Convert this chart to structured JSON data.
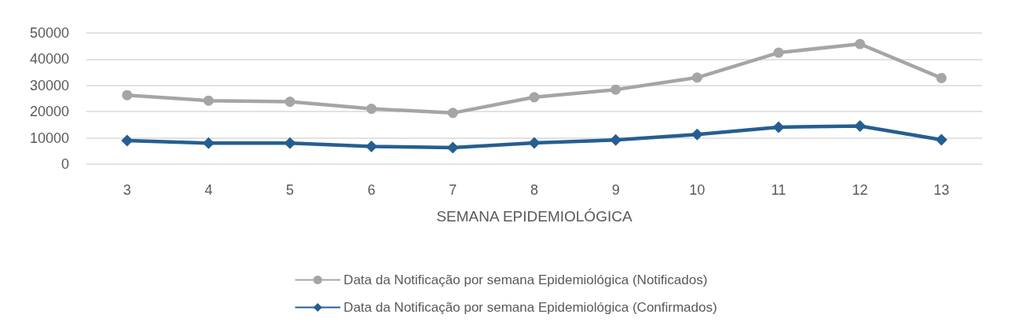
{
  "chart_data": {
    "type": "line",
    "xlabel": "SEMANA EPIDEMIOLÓGICA",
    "categories": [
      "3",
      "4",
      "5",
      "6",
      "7",
      "8",
      "9",
      "10",
      "11",
      "12",
      "13"
    ],
    "series": [
      {
        "name": "Data da Notificação por semana Epidemiológica (Notificados)",
        "color": "#a5a5a5",
        "marker": "circle",
        "values": [
          26300,
          24200,
          23800,
          21100,
          19500,
          25500,
          28400,
          33000,
          42500,
          45800,
          32800
        ]
      },
      {
        "name": "Data da Notificação por semana Epidemiológica (Confirmados)",
        "color": "#255e91",
        "marker": "diamond",
        "values": [
          9000,
          8000,
          8000,
          6700,
          6300,
          8100,
          9200,
          11300,
          14100,
          14500,
          9300
        ]
      }
    ],
    "ylim": [
      0,
      50000
    ],
    "yticks": [
      0,
      10000,
      20000,
      30000,
      40000,
      50000
    ],
    "grid": "y",
    "legend": "bottom"
  }
}
